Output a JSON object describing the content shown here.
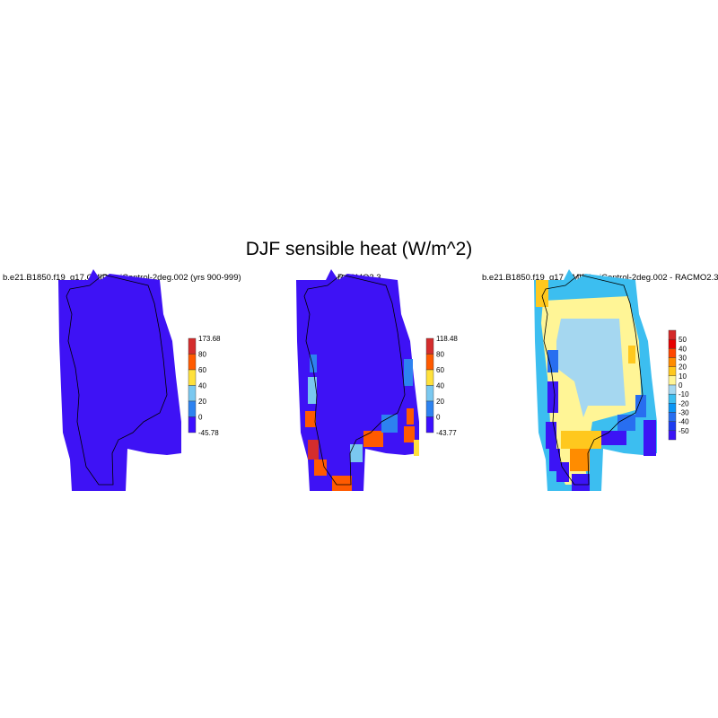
{
  "title": "DJF sensible heat (W/m^2)",
  "panels": [
    {
      "subtitle": "b.e21.B1850.f19_g17.CMIP6-piControl-2deg.002 (yrs 900-999)",
      "colorbar": {
        "labels": [
          "173.68",
          "80",
          "60",
          "40",
          "20",
          "0",
          "-45.78"
        ],
        "colors": [
          "#d42d2d",
          "#ff5a00",
          "#ffe13c",
          "#7ac8f0",
          "#2d82f0",
          "#3c0fff"
        ]
      }
    },
    {
      "subtitle": "RACMO2.3",
      "colorbar": {
        "labels": [
          "118.48",
          "80",
          "60",
          "40",
          "20",
          "0",
          "-43.77"
        ],
        "colors": [
          "#d42d2d",
          "#ff5a00",
          "#ffe13c",
          "#7ac8f0",
          "#2d82f0",
          "#3c0fff"
        ]
      }
    },
    {
      "subtitle": "b.e21.B1850.f19_g17.CMIP6-piControl-2deg.002 - RACMO2.3",
      "colorbar": {
        "labels": [
          "50",
          "40",
          "30",
          "20",
          "10",
          "0",
          "-10",
          "-20",
          "-30",
          "-40",
          "-50"
        ],
        "colors": [
          "#d42828",
          "#e60000",
          "#ff4600",
          "#ff8c00",
          "#ffc81e",
          "#fff596",
          "#a5d7f0",
          "#3cbef0",
          "#0a96f5",
          "#286ef0",
          "#1e3cf0",
          "#3c14f5"
        ]
      }
    }
  ],
  "colors": {
    "background_field": "#3e12f5"
  }
}
